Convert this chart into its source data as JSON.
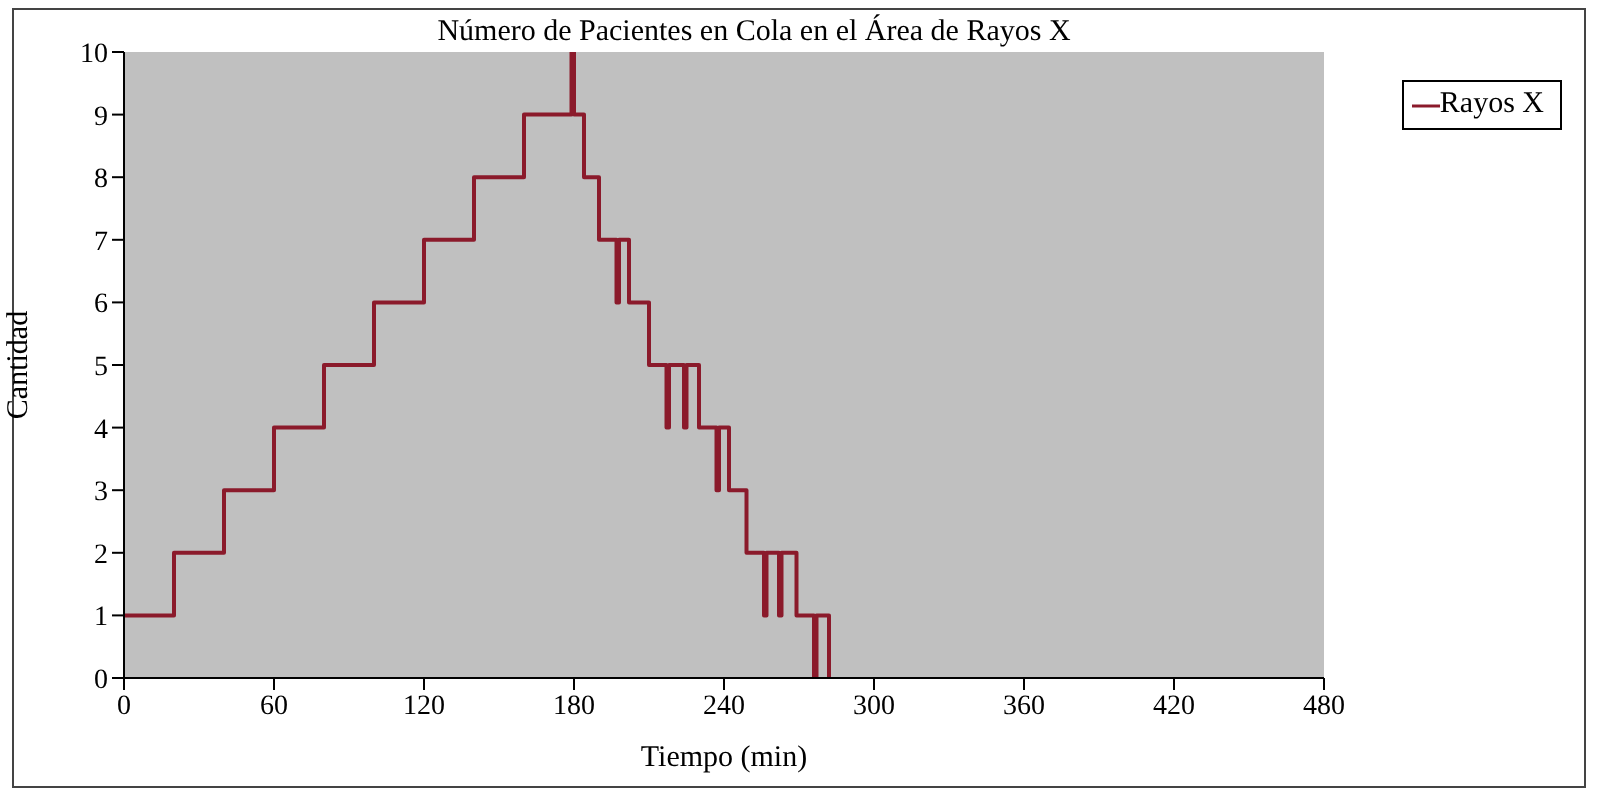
{
  "chart_data": {
    "type": "step",
    "title": "Número de Pacientes en Cola en el Área de Rayos X",
    "xlabel": "Tiempo (min)",
    "ylabel": "Cantidad",
    "series": [
      {
        "name": "Rayos X",
        "color": "#8b1a2b",
        "x": [
          0,
          20,
          40,
          60,
          80,
          100,
          120,
          140,
          160,
          179,
          180,
          184,
          190,
          197,
          198,
          202,
          210,
          217,
          218,
          224,
          225,
          230,
          237,
          238,
          242,
          249,
          256,
          257,
          262,
          263,
          269,
          276,
          277,
          282
        ],
        "values": [
          1,
          2,
          3,
          4,
          5,
          6,
          7,
          8,
          9,
          10,
          9,
          8,
          7,
          6,
          7,
          6,
          5,
          4,
          5,
          4,
          5,
          4,
          3,
          4,
          3,
          2,
          1,
          2,
          1,
          2,
          1,
          0,
          1,
          0
        ]
      }
    ],
    "xlim": [
      0,
      480
    ],
    "xticks": [
      0,
      60,
      120,
      180,
      240,
      300,
      360,
      420,
      480
    ],
    "ylim": [
      0,
      10
    ],
    "yticks": [
      0,
      1,
      2,
      3,
      4,
      5,
      6,
      7,
      8,
      9,
      10
    ],
    "grid": false,
    "legend": "top right",
    "marker": "none",
    "line_style": "solid"
  }
}
